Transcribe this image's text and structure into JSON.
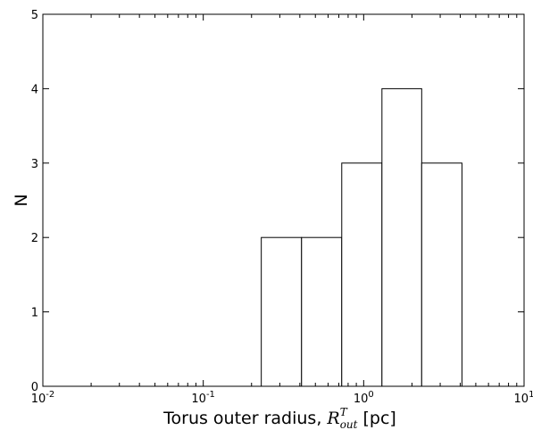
{
  "chart_data": {
    "type": "bar",
    "title": "",
    "xlabel_prefix": "Torus outer radius, ",
    "xlabel_symbol": "R",
    "xlabel_superscript": "T",
    "xlabel_subscript": "out",
    "xlabel_suffix": " [pc]",
    "ylabel": "N",
    "xscale": "log",
    "xlim": [
      0.01,
      10
    ],
    "ylim": [
      0,
      5
    ],
    "x_ticks": [
      {
        "value": 0.01,
        "base": "10",
        "exp": "-2"
      },
      {
        "value": 0.1,
        "base": "10",
        "exp": "-1"
      },
      {
        "value": 1,
        "base": "10",
        "exp": "0"
      },
      {
        "value": 10,
        "base": "10",
        "exp": "1"
      }
    ],
    "y_ticks": [
      0,
      1,
      2,
      3,
      4,
      5
    ],
    "bins": [
      {
        "left": 0.23,
        "right": 0.41,
        "count": 2
      },
      {
        "left": 0.41,
        "right": 0.73,
        "count": 2
      },
      {
        "left": 0.73,
        "right": 1.3,
        "count": 3
      },
      {
        "left": 1.3,
        "right": 2.3,
        "count": 4
      },
      {
        "left": 2.3,
        "right": 4.1,
        "count": 3
      }
    ],
    "bar_fill": "#ffffff",
    "bar_stroke": "#000000",
    "grid": false,
    "legend": "none"
  }
}
